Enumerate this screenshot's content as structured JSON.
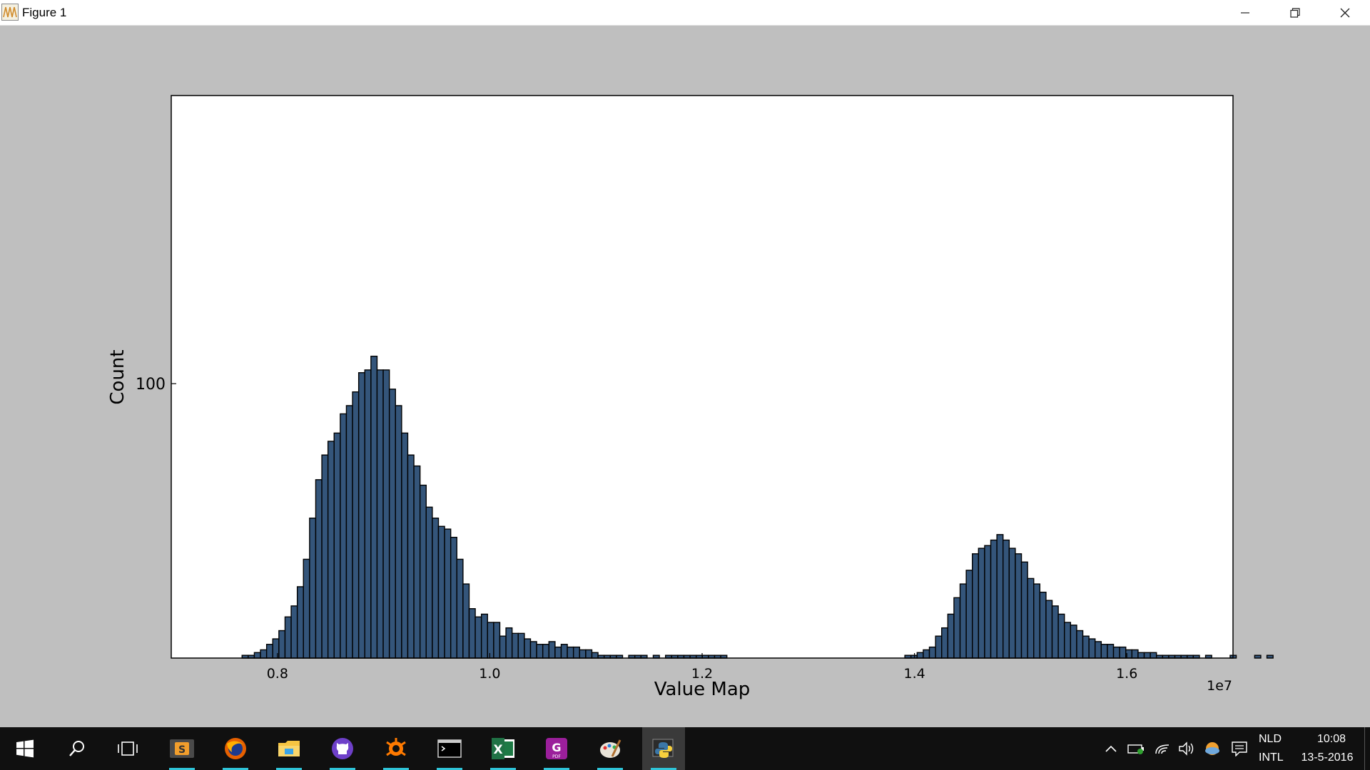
{
  "window": {
    "title": "Figure 1"
  },
  "chart_data": {
    "type": "bar",
    "title": "",
    "xlabel": "Value Map",
    "ylabel": "Count",
    "x_offset_label": "1e7",
    "xlim": [
      0.7,
      1.7
    ],
    "ylim": [
      0,
      100
    ],
    "x_ticks": [
      {
        "value": 0.8,
        "label": "0.8"
      },
      {
        "value": 1.0,
        "label": "1.0"
      },
      {
        "value": 1.2,
        "label": "1.2"
      },
      {
        "value": 1.4,
        "label": "1.4"
      },
      {
        "value": 1.6,
        "label": "1.6"
      }
    ],
    "y_ticks": [
      {
        "value": 100,
        "label": "100"
      }
    ],
    "bar_color": "#34557a",
    "edge_color": "#000000",
    "bins": {
      "start": 0.7667,
      "width": 0.00578,
      "counts": [
        1,
        1,
        2,
        3,
        5,
        7,
        10,
        15,
        19,
        26,
        36,
        51,
        65,
        74,
        79,
        82,
        89,
        92,
        97,
        104,
        105,
        110,
        105,
        105,
        98,
        92,
        82,
        74,
        70,
        63,
        55,
        51,
        48,
        47,
        44,
        36,
        27,
        18,
        15,
        16,
        13,
        13,
        8,
        11,
        9,
        9,
        7,
        6,
        5,
        5,
        6,
        4,
        5,
        4,
        4,
        3,
        3,
        2,
        1,
        1,
        1,
        1,
        0,
        1,
        1,
        1,
        0,
        1,
        0,
        1,
        1,
        1,
        1,
        1,
        1,
        1,
        1,
        1,
        1,
        0,
        0,
        0,
        0,
        0,
        0,
        0,
        0,
        0,
        0,
        0,
        0,
        0,
        0,
        0,
        0,
        0,
        0,
        0,
        0,
        0,
        0,
        0,
        0,
        0,
        0,
        0,
        0,
        0,
        1,
        1,
        2,
        3,
        4,
        8,
        11,
        16,
        22,
        27,
        32,
        38,
        40,
        41,
        43,
        45,
        43,
        40,
        38,
        35,
        29,
        27,
        24,
        21,
        19,
        16,
        13,
        12,
        10,
        8,
        7,
        6,
        5,
        5,
        4,
        4,
        3,
        3,
        2,
        2,
        2,
        1,
        1,
        1,
        1,
        1,
        1,
        1,
        0,
        1,
        0,
        0,
        0,
        1,
        0,
        0,
        0,
        1,
        0,
        1
      ]
    }
  },
  "taskbar": {
    "apps": [
      {
        "name": "sublime-text-icon"
      },
      {
        "name": "firefox-icon"
      },
      {
        "name": "file-explorer-icon"
      },
      {
        "name": "github-icon"
      },
      {
        "name": "avast-icon"
      },
      {
        "name": "terminal-icon"
      },
      {
        "name": "excel-icon"
      },
      {
        "name": "pdf-reader-icon"
      },
      {
        "name": "paint-icon"
      },
      {
        "name": "python-icon"
      }
    ],
    "language_top": "NLD",
    "language_bottom": "INTL",
    "time": "10:08",
    "date": "13-5-2016"
  }
}
